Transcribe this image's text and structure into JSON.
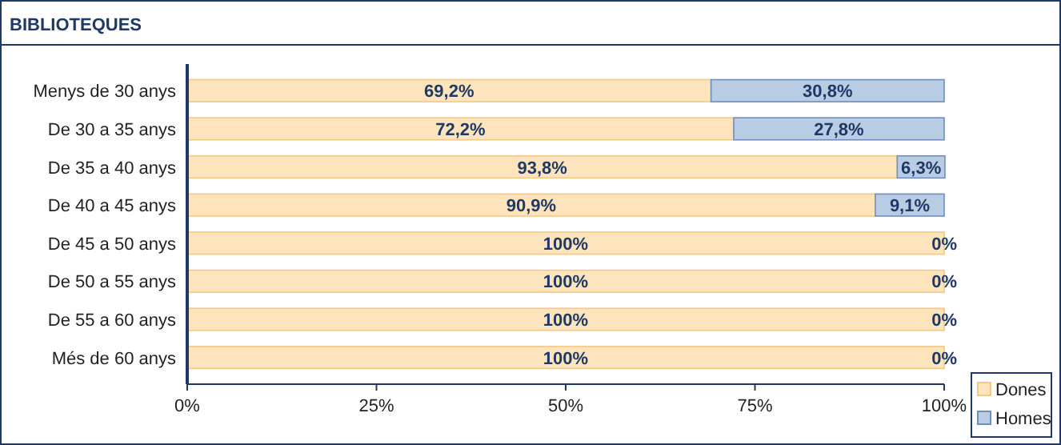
{
  "chart_data": {
    "type": "bar",
    "orientation": "horizontal",
    "stacked": true,
    "title": "BIBLIOTEQUES",
    "categories": [
      "Menys de 30 anys",
      "De 30 a 35 anys",
      "De 35 a 40 anys",
      "De 40 a 45 anys",
      "De 45 a 50 anys",
      "De 50 a 55 anys",
      "De 55 a 60 anys",
      "Més de 60 anys"
    ],
    "series": [
      {
        "name": "Dones",
        "color": "#fde4bc",
        "values": [
          69.2,
          72.2,
          93.8,
          90.9,
          100,
          100,
          100,
          100
        ],
        "value_labels": [
          "69,2%",
          "72,2%",
          "93,8%",
          "90,9%",
          "100%",
          "100%",
          "100%",
          "100%"
        ]
      },
      {
        "name": "Homes",
        "color": "#b8cce4",
        "values": [
          30.8,
          27.8,
          6.3,
          9.1,
          0,
          0,
          0,
          0
        ],
        "value_labels": [
          "30,8%",
          "27,8%",
          "6,3%",
          "9,1%",
          "0%",
          "0%",
          "0%",
          "0%"
        ]
      }
    ],
    "xlim": [
      0,
      100
    ],
    "xticks": [
      {
        "value": 0,
        "label": "0%"
      },
      {
        "value": 25,
        "label": "25%"
      },
      {
        "value": 50,
        "label": "50%"
      },
      {
        "value": 75,
        "label": "75%"
      },
      {
        "value": 100,
        "label": "100%"
      }
    ],
    "grid": false,
    "legend": "bottom right"
  }
}
